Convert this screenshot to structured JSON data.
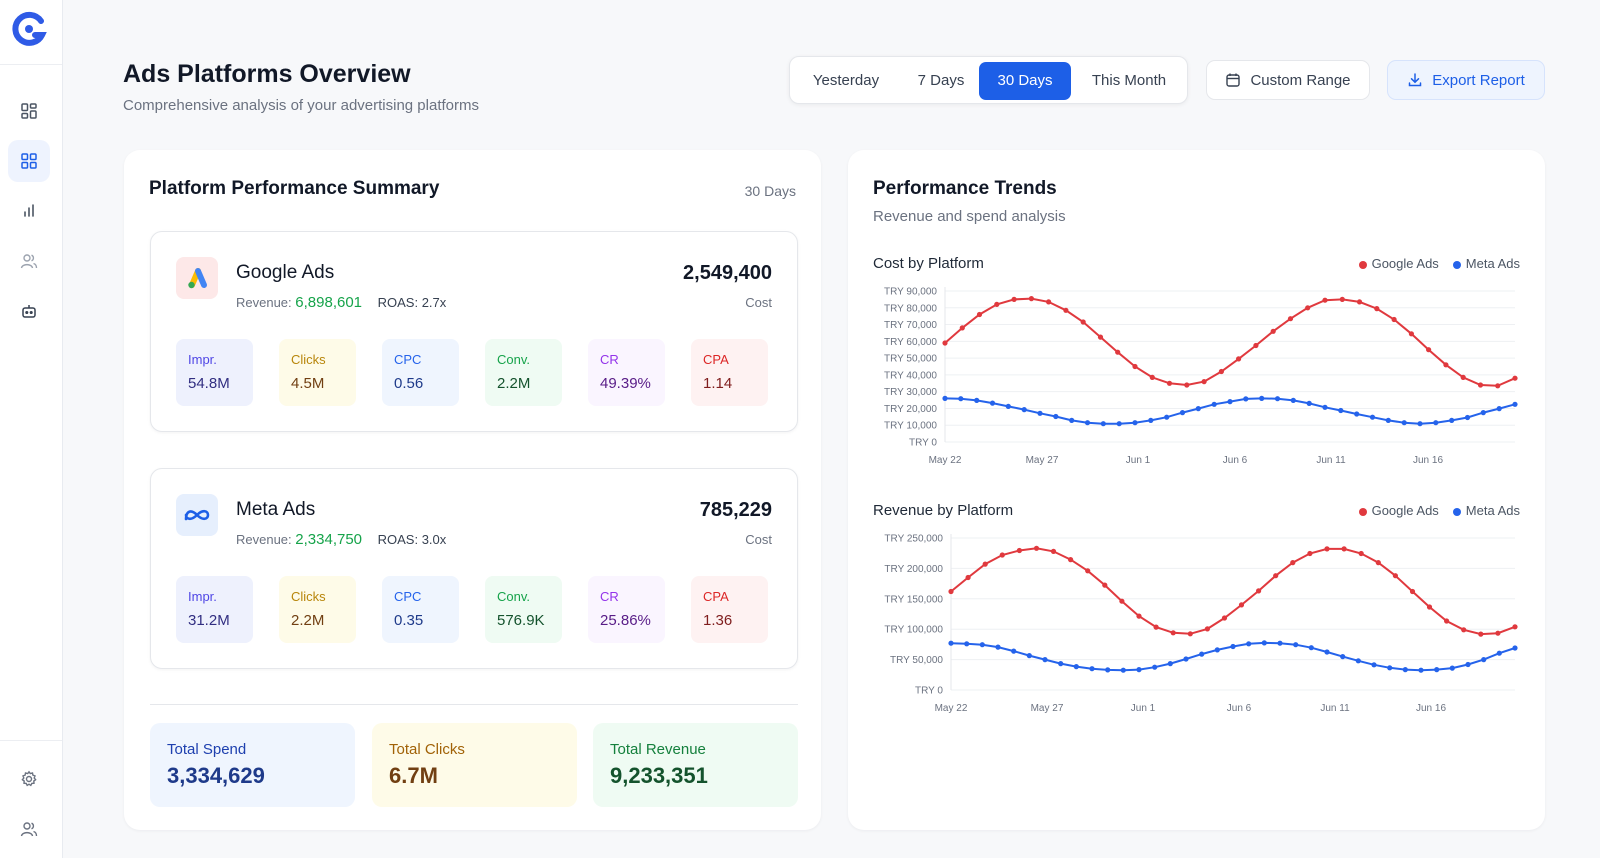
{
  "sidebar": {
    "logo": "g-logo",
    "nav": [
      {
        "name": "dashboard",
        "icon": "grid-icon",
        "active": false
      },
      {
        "name": "ads-platforms",
        "icon": "grid-icon",
        "active": true
      },
      {
        "name": "analytics",
        "icon": "bar-chart-icon",
        "active": false
      },
      {
        "name": "audience",
        "icon": "users-icon",
        "active": false
      },
      {
        "name": "automation",
        "icon": "robot-icon",
        "active": false
      }
    ],
    "bottom": [
      {
        "name": "settings",
        "icon": "gear-icon"
      },
      {
        "name": "account",
        "icon": "users-icon"
      }
    ]
  },
  "header": {
    "title": "Ads Platforms Overview",
    "subtitle": "Comprehensive analysis of your advertising platforms",
    "ranges": [
      "Yesterday",
      "7 Days",
      "30 Days",
      "This Month"
    ],
    "active_range": "30 Days",
    "custom_range_label": "Custom Range",
    "export_label": "Export Report"
  },
  "summary": {
    "title": "Platform Performance Summary",
    "period": "30 Days",
    "platforms": [
      {
        "name": "Google Ads",
        "icon": "google-ads-icon",
        "revenue_label": "Revenue:",
        "revenue": "6,898,601",
        "roas": "ROAS: 2.7x",
        "cost": "2,549,400",
        "cost_label": "Cost",
        "metrics": [
          {
            "label": "Impr.",
            "value": "54.8M"
          },
          {
            "label": "Clicks",
            "value": "4.5M"
          },
          {
            "label": "CPC",
            "value": "0.56"
          },
          {
            "label": "Conv.",
            "value": "2.2M"
          },
          {
            "label": "CR",
            "value": "49.39%"
          },
          {
            "label": "CPA",
            "value": "1.14"
          }
        ]
      },
      {
        "name": "Meta Ads",
        "icon": "meta-icon",
        "revenue_label": "Revenue:",
        "revenue": "2,334,750",
        "roas": "ROAS: 3.0x",
        "cost": "785,229",
        "cost_label": "Cost",
        "metrics": [
          {
            "label": "Impr.",
            "value": "31.2M"
          },
          {
            "label": "Clicks",
            "value": "2.2M"
          },
          {
            "label": "CPC",
            "value": "0.35"
          },
          {
            "label": "Conv.",
            "value": "576.9K"
          },
          {
            "label": "CR",
            "value": "25.86%"
          },
          {
            "label": "CPA",
            "value": "1.36"
          }
        ]
      }
    ],
    "totals": [
      {
        "label": "Total Spend",
        "value": "3,334,629"
      },
      {
        "label": "Total Clicks",
        "value": "6.7M"
      },
      {
        "label": "Total Revenue",
        "value": "9,233,351"
      }
    ]
  },
  "trends": {
    "title": "Performance Trends",
    "subtitle": "Revenue and spend analysis"
  },
  "colors": {
    "google": "#e0393e",
    "meta": "#2563eb",
    "primary": "#1d5fe7"
  },
  "chart_data": [
    {
      "type": "line",
      "title": "Cost by Platform",
      "legend": "top-right",
      "grid": true,
      "x_ticks": [
        "May 22",
        "May 27",
        "Jun 1",
        "Jun 6",
        "Jun 11",
        "Jun 16"
      ],
      "y_ticks": [
        "TRY 0",
        "TRY 10,000",
        "TRY 20,000",
        "TRY 30,000",
        "TRY 40,000",
        "TRY 50,000",
        "TRY 60,000",
        "TRY 70,000",
        "TRY 80,000",
        "TRY 90,000"
      ],
      "ylim": [
        0,
        90000
      ],
      "series": [
        {
          "name": "Google Ads",
          "values": [
            59000,
            68000,
            76000,
            82000,
            85000,
            85500,
            83500,
            78500,
            71500,
            62500,
            53500,
            45000,
            38500,
            35000,
            34000,
            36000,
            42000,
            49500,
            57500,
            66000,
            73500,
            80000,
            84500,
            85000,
            83500,
            79500,
            73000,
            64500,
            55000,
            46000,
            38500,
            34000,
            33500,
            38000
          ]
        },
        {
          "name": "Meta Ads",
          "values": [
            26000,
            25800,
            24800,
            23200,
            21200,
            19300,
            17100,
            15200,
            12900,
            11500,
            10900,
            10900,
            11500,
            12900,
            14800,
            17500,
            19900,
            22500,
            24100,
            25700,
            26000,
            25800,
            24800,
            23000,
            20700,
            18800,
            16700,
            14800,
            12900,
            11500,
            10900,
            11500,
            12900,
            14600,
            17500,
            19900,
            22500
          ]
        }
      ]
    },
    {
      "type": "line",
      "title": "Revenue by Platform",
      "legend": "top-right",
      "grid": true,
      "x_ticks": [
        "May 22",
        "May 27",
        "Jun 1",
        "Jun 6",
        "Jun 11",
        "Jun 16"
      ],
      "y_ticks": [
        "TRY 0",
        "TRY 50,000",
        "TRY 100,000",
        "TRY 150,000",
        "TRY 200,000",
        "TRY 250,000"
      ],
      "ylim": [
        0,
        250000
      ],
      "series": [
        {
          "name": "Google Ads",
          "values": [
            162000,
            185000,
            207000,
            222000,
            229500,
            233000,
            228000,
            214500,
            196000,
            172500,
            146000,
            121500,
            103500,
            94000,
            92500,
            100500,
            118500,
            140000,
            163000,
            188000,
            209500,
            224500,
            232000,
            232000,
            224500,
            209500,
            188000,
            162000,
            136500,
            113500,
            99000,
            92000,
            93500,
            104000
          ]
        },
        {
          "name": "Meta Ads",
          "values": [
            77000,
            76000,
            74500,
            70500,
            64000,
            56500,
            50000,
            43500,
            38500,
            35000,
            33000,
            32500,
            33500,
            37500,
            43500,
            51000,
            59000,
            66000,
            71500,
            76000,
            77500,
            77000,
            74500,
            69500,
            62500,
            55000,
            48000,
            41500,
            36500,
            33500,
            32500,
            33500,
            36000,
            42000,
            50000,
            60500,
            69000
          ]
        }
      ]
    }
  ]
}
